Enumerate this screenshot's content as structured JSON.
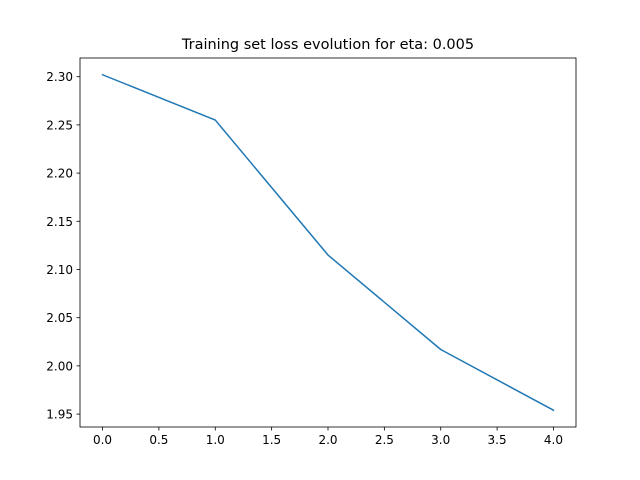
{
  "chart_data": {
    "type": "line",
    "title": "Training set loss evolution for eta: 0.005",
    "xlabel": "",
    "ylabel": "",
    "x": [
      0,
      1,
      2,
      3,
      4
    ],
    "series": [
      {
        "values": [
          2.302,
          2.255,
          2.115,
          2.017,
          1.954
        ],
        "color": "#1f77b4"
      }
    ],
    "xlim": [
      -0.2,
      4.2
    ],
    "ylim": [
      1.9366,
      2.3194
    ],
    "xticks": [
      0.0,
      0.5,
      1.0,
      1.5,
      2.0,
      2.5,
      3.0,
      3.5,
      4.0
    ],
    "xtick_labels": [
      "0.0",
      "0.5",
      "1.0",
      "1.5",
      "2.0",
      "2.5",
      "3.0",
      "3.5",
      "4.0"
    ],
    "yticks": [
      1.95,
      2.0,
      2.05,
      2.1,
      2.15,
      2.2,
      2.25,
      2.3
    ],
    "ytick_labels": [
      "1.95",
      "2.00",
      "2.05",
      "2.10",
      "2.15",
      "2.20",
      "2.25",
      "2.30"
    ],
    "grid": false,
    "legend": "none"
  }
}
